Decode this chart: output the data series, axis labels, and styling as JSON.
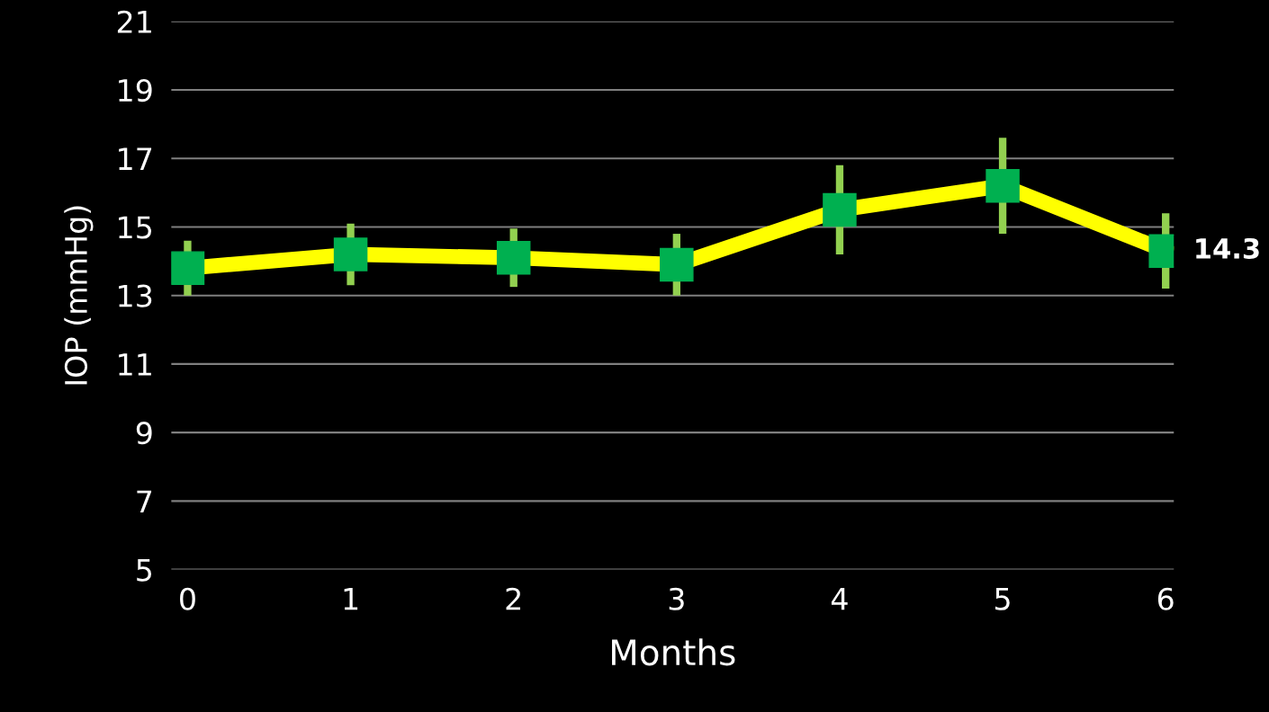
{
  "chart_data": {
    "type": "line",
    "xlabel": "Months",
    "ylabel": "IOP (mmHg)",
    "categories": [
      "0",
      "1",
      "2",
      "3",
      "4",
      "5",
      "6"
    ],
    "series": [
      {
        "color": "#ffff00",
        "values": [
          13.8,
          14.2,
          14.1,
          13.9,
          15.5,
          16.2,
          14.3
        ],
        "errors": [
          0.8,
          0.9,
          0.85,
          0.9,
          1.3,
          1.4,
          1.1
        ],
        "value_labels": [
          null,
          null,
          null,
          null,
          null,
          null,
          "14.3"
        ]
      }
    ],
    "ylim": [
      5,
      21
    ],
    "yticks": [
      5,
      7,
      9,
      11,
      13,
      15,
      17,
      19,
      21
    ],
    "grid": "y",
    "marker": "square",
    "line_style": "solid"
  }
}
